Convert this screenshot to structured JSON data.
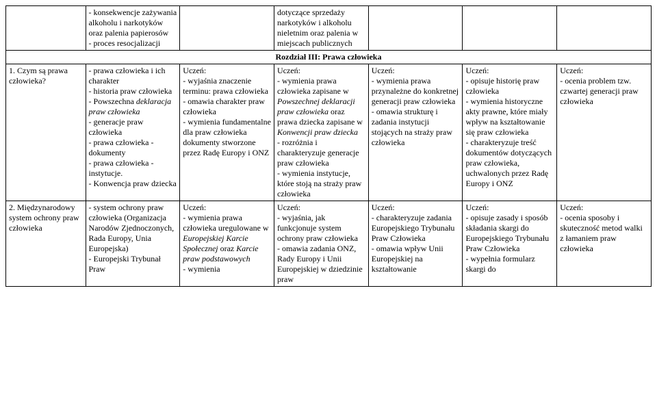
{
  "topRow": {
    "c0": "",
    "c1": "- konsekwencje zażywania alkoholu i narkotyków oraz palenia papierosów\n- proces resocjalizacji",
    "c2": "",
    "c3": "dotyczące sprzedaży narkotyków i alkoholu nieletnim oraz palenia w miejscach publicznych",
    "c4": "",
    "c5": "",
    "c6": ""
  },
  "sectionTitle": "Rozdział III: Prawa człowieka",
  "row1": {
    "c0": "1. Czym są prawa człowieka?",
    "c1": "- prawa człowieka i ich charakter\n- historia praw człowieka\n- Powszechna deklaracja praw człowieka\n- generacje praw człowieka\n- prawa człowieka - dokumenty\n- prawa człowieka - instytucje.\n- Konwencja praw dziecka",
    "c2": "Uczeń:\n- wyjaśnia znaczenie terminu: prawa człowieka\n- omawia charakter praw człowieka\n- wymienia fundamentalne dla praw człowieka dokumenty stworzone przez Radę Europy i ONZ",
    "c3": "Uczeń:\n- wymienia prawa człowieka zapisane w Powszechnej deklaracji praw człowieka oraz prawa dziecka zapisane w Konwencji praw dziecka\n- rozróżnia i charakteryzuje generacje praw człowieka\n- wymienia instytucje, które stoją na straży praw człowieka",
    "c4": "Uczeń:\n- wymienia prawa przynależne do konkretnej generacji praw człowieka\n- omawia strukturę i zadania instytucji stojących na straży praw człowieka",
    "c5": "Uczeń:\n- opisuje historię praw człowieka\n- wymienia historyczne akty prawne, które miały wpływ na kształtowanie się praw człowieka\n- charakteryzuje treść dokumentów dotyczących praw człowieka, uchwalonych przez Radę Europy i ONZ",
    "c6": "Uczeń:\n- ocenia problem tzw. czwartej generacji praw człowieka"
  },
  "row2": {
    "c0": "2. Międzynarodowy system ochrony praw człowieka",
    "c1": "- system ochrony praw człowieka (Organizacja Narodów Zjednoczonych, Rada Europy, Unia Europejska)\n- Europejski Trybunał Praw",
    "c2": "Uczeń:\n- wymienia prawa człowieka uregulowane w Europejskiej Karcie Społecznej oraz Karcie praw podstawowych\n- wymienia",
    "c3": "Uczeń:\n- wyjaśnia, jak funkcjonuje system ochrony praw człowieka\n- omawia zadania ONZ, Rady Europy i Unii Europejskiej w dziedzinie praw",
    "c4": "Uczeń:\n- charakteryzuje zadania Europejskiego Trybunału Praw Człowieka\n- omawia wpływ Unii Europejskiej na kształtowanie",
    "c5": "Uczeń:\n- opisuje zasady i sposób składania skargi do Europejskiego Trybunału Praw Człowieka\n- wypełnia formularz skargi do",
    "c6": "Uczeń:\n- ocenia sposoby i skuteczność metod walki z łamaniem praw człowieka"
  }
}
